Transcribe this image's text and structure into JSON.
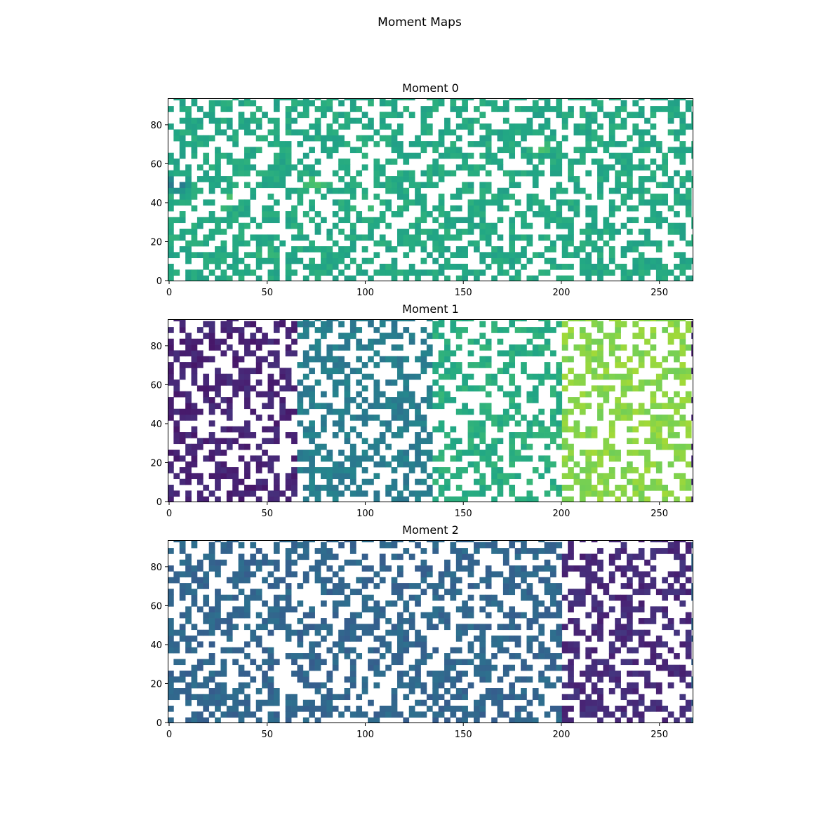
{
  "figure": {
    "suptitle": "Moment  Maps"
  },
  "chart_data": [
    {
      "type": "heatmap",
      "title": "Moment 0",
      "colormap": "viridis",
      "missing_color": "#ffffff",
      "grid": false,
      "xlim": [
        0,
        268
      ],
      "ylim": [
        0,
        94
      ],
      "x_ticks": [
        0,
        50,
        100,
        150,
        200,
        250
      ],
      "y_ticks": [
        0,
        20,
        40,
        60,
        80
      ],
      "x_tick_labels": [
        "0",
        "50",
        "100",
        "150",
        "200",
        "250"
      ],
      "y_tick_labels": [
        "0",
        "20",
        "40",
        "60",
        "80"
      ],
      "grid_shape": [
        94,
        268
      ],
      "coverage_fraction": 0.5,
      "regions": [
        {
          "x_range": [
            0,
            268
          ],
          "color_level": 0.6
        }
      ],
      "highlight_spots": [
        {
          "x": 30,
          "y": 42,
          "color_level": 0.82
        },
        {
          "x": 50,
          "y": 15,
          "color_level": 0.7
        },
        {
          "x": 100,
          "y": 40,
          "color_level": 0.8
        },
        {
          "x": 190,
          "y": 70,
          "color_level": 0.78
        },
        {
          "x": 5,
          "y": 50,
          "color_level": 0.3
        },
        {
          "x": 75,
          "y": 50,
          "color_level": 0.75
        }
      ]
    },
    {
      "type": "heatmap",
      "title": "Moment 1",
      "colormap": "viridis",
      "missing_color": "#ffffff",
      "grid": false,
      "xlim": [
        0,
        268
      ],
      "ylim": [
        0,
        94
      ],
      "x_ticks": [
        0,
        50,
        100,
        150,
        200,
        250
      ],
      "y_ticks": [
        0,
        20,
        40,
        60,
        80
      ],
      "x_tick_labels": [
        "0",
        "50",
        "100",
        "150",
        "200",
        "250"
      ],
      "y_tick_labels": [
        "0",
        "20",
        "40",
        "60",
        "80"
      ],
      "grid_shape": [
        94,
        268
      ],
      "coverage_fraction": 0.48,
      "regions": [
        {
          "x_range": [
            0,
            66
          ],
          "color_level": 0.1
        },
        {
          "x_range": [
            66,
            135
          ],
          "color_level": 0.42
        },
        {
          "x_range": [
            135,
            201
          ],
          "color_level": 0.62
        },
        {
          "x_range": [
            201,
            268
          ],
          "color_level": 0.82
        }
      ],
      "highlight_spots": []
    },
    {
      "type": "heatmap",
      "title": "Moment 2",
      "colormap": "viridis",
      "missing_color": "#ffffff",
      "grid": false,
      "xlim": [
        0,
        268
      ],
      "ylim": [
        0,
        94
      ],
      "x_ticks": [
        0,
        50,
        100,
        150,
        200,
        250
      ],
      "y_ticks": [
        0,
        20,
        40,
        60,
        80
      ],
      "x_tick_labels": [
        "0",
        "50",
        "100",
        "150",
        "200",
        "250"
      ],
      "y_tick_labels": [
        "0",
        "20",
        "40",
        "60",
        "80"
      ],
      "grid_shape": [
        94,
        268
      ],
      "coverage_fraction": 0.48,
      "regions": [
        {
          "x_range": [
            0,
            200
          ],
          "color_level": 0.33
        },
        {
          "x_range": [
            200,
            268
          ],
          "color_level": 0.12
        }
      ],
      "highlight_spots": []
    }
  ]
}
